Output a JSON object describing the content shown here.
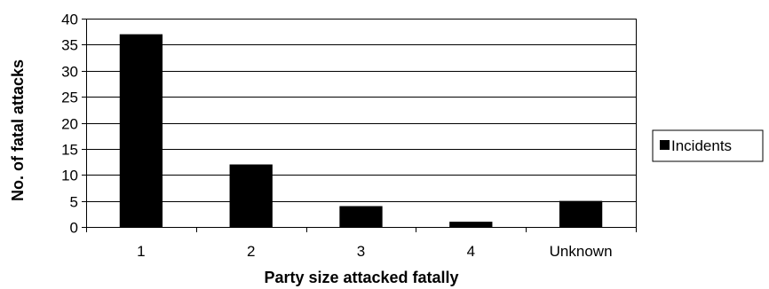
{
  "chart_data": {
    "type": "bar",
    "title": "",
    "xlabel": "Party size attacked fatally",
    "ylabel": "No. of fatal attacks",
    "categories": [
      "1",
      "2",
      "3",
      "4",
      "Unknown"
    ],
    "series": [
      {
        "name": "Incidents",
        "values": [
          37,
          12,
          4,
          1,
          5
        ],
        "color": "#000000"
      }
    ],
    "ylim": [
      0,
      40
    ],
    "yticks": [
      0,
      5,
      10,
      15,
      20,
      25,
      30,
      35,
      40
    ],
    "grid": true,
    "legend_position": "right"
  }
}
